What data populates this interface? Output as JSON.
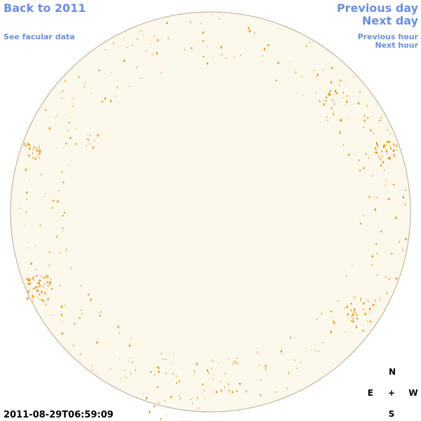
{
  "nav": {
    "back": "Back to 2011",
    "facular": "See facular data",
    "previous_day": "Previous day",
    "next_day": "Next day",
    "previous_hour": "Previous hour",
    "next_hour": "Next hour"
  },
  "timestamp": "2011-08-29T06:59:09",
  "compass": {
    "north": "N",
    "east": "E",
    "center": "+",
    "west": "W",
    "south": "S"
  }
}
